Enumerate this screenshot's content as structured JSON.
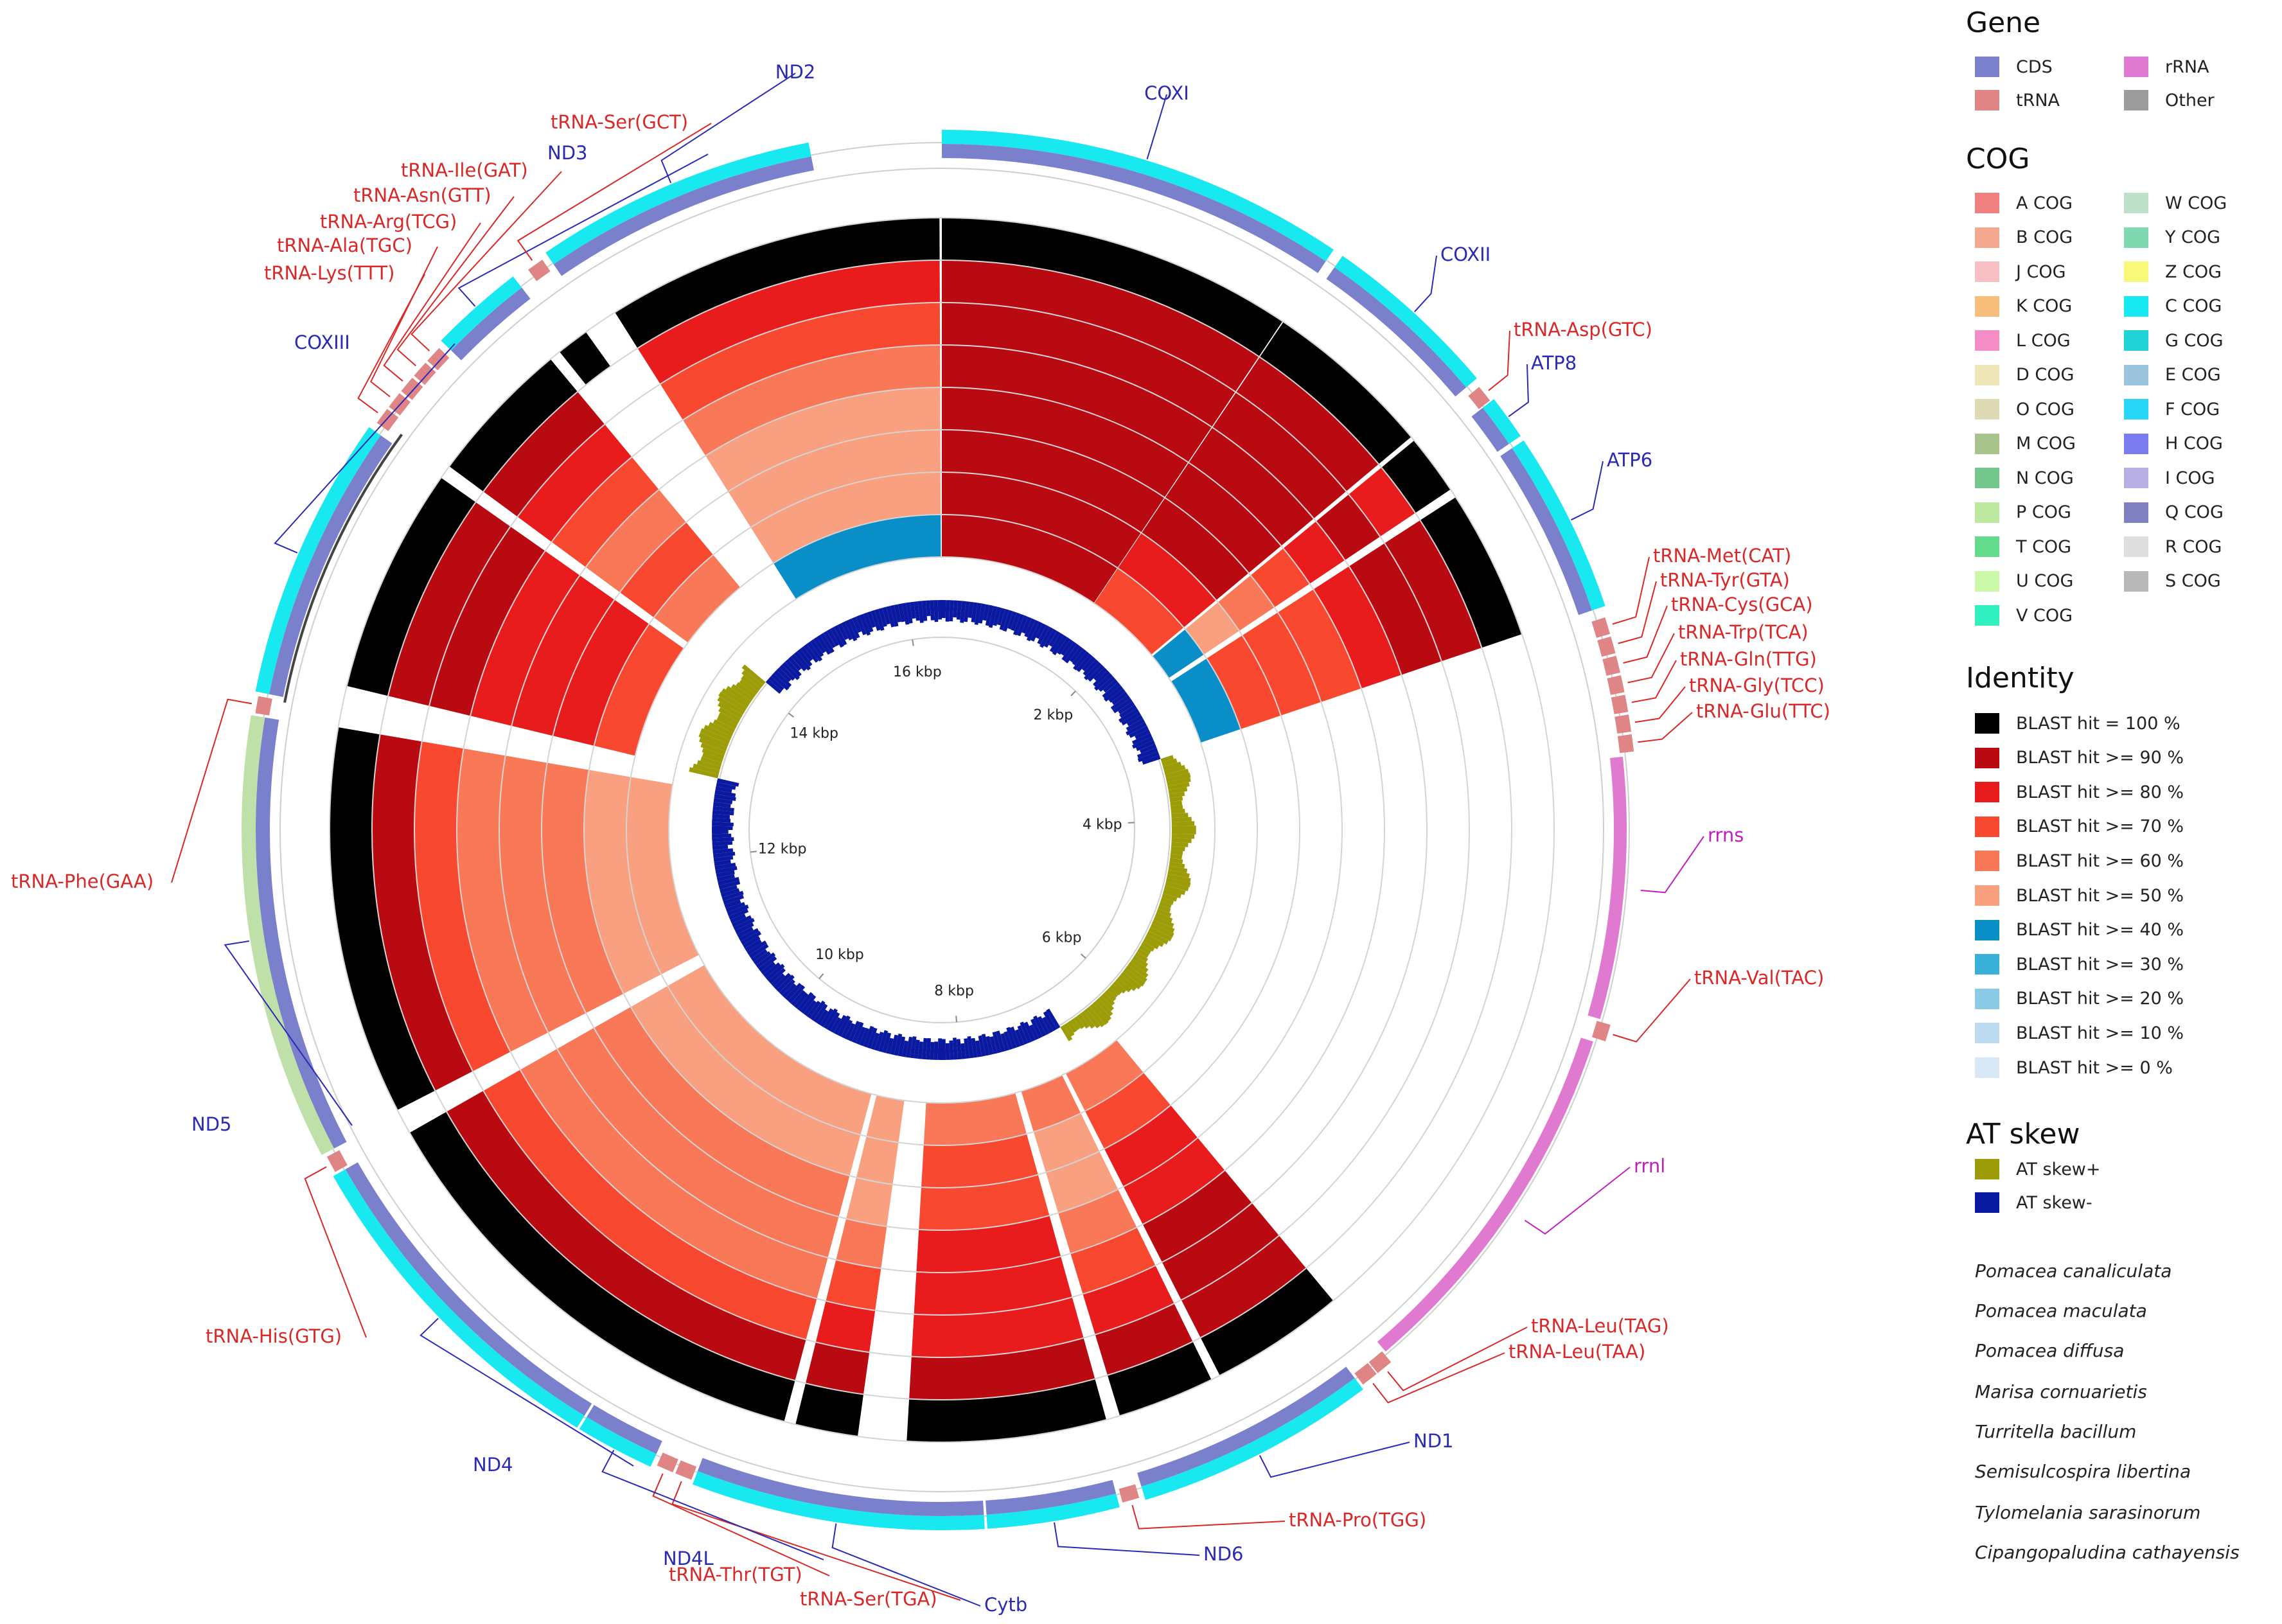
{
  "chart_data": {
    "type": "circular-genome-map",
    "genome_length_bp": 16400,
    "ticks": [
      {
        "pos": 2000,
        "label": "2 kbp"
      },
      {
        "pos": 4000,
        "label": "4 kbp"
      },
      {
        "pos": 6000,
        "label": "6 kbp"
      },
      {
        "pos": 8000,
        "label": "8 kbp"
      },
      {
        "pos": 10000,
        "label": "10 kbp"
      },
      {
        "pos": 12000,
        "label": "12 kbp"
      },
      {
        "pos": 14000,
        "label": "14 kbp"
      },
      {
        "pos": 16000,
        "label": "16 kbp"
      }
    ],
    "genes": [
      {
        "name": "COXI",
        "type": "CDS",
        "start": 0,
        "end": 1550
      },
      {
        "name": "COXII",
        "type": "CDS",
        "start": 1590,
        "end": 2270
      },
      {
        "name": "tRNA-Asp(GTC)",
        "type": "tRNA",
        "start": 2300,
        "end": 2365
      },
      {
        "name": "ATP8",
        "type": "CDS",
        "start": 2370,
        "end": 2540
      },
      {
        "name": "ATP6",
        "type": "CDS",
        "start": 2560,
        "end": 3250
      },
      {
        "name": "tRNA-Met(CAT)",
        "type": "tRNA",
        "start": 3290,
        "end": 3355
      },
      {
        "name": "tRNA-Tyr(GTA)",
        "type": "tRNA",
        "start": 3365,
        "end": 3430
      },
      {
        "name": "tRNA-Cys(GCA)",
        "type": "tRNA",
        "start": 3440,
        "end": 3505
      },
      {
        "name": "tRNA-Trp(TCA)",
        "type": "tRNA",
        "start": 3515,
        "end": 3580
      },
      {
        "name": "tRNA-Gln(TTG)",
        "type": "tRNA",
        "start": 3590,
        "end": 3655
      },
      {
        "name": "tRNA-Gly(TCC)",
        "type": "tRNA",
        "start": 3665,
        "end": 3730
      },
      {
        "name": "tRNA-Glu(TTC)",
        "type": "tRNA",
        "start": 3740,
        "end": 3805
      },
      {
        "name": "rrns",
        "type": "rRNA",
        "start": 3820,
        "end": 4830
      },
      {
        "name": "tRNA-Val(TAC)",
        "type": "tRNA",
        "start": 4840,
        "end": 4905
      },
      {
        "name": "rrnl",
        "type": "rRNA",
        "start": 4920,
        "end": 6360
      },
      {
        "name": "tRNA-Leu(TAG)",
        "type": "tRNA",
        "start": 6370,
        "end": 6435
      },
      {
        "name": "tRNA-Leu(TAA)",
        "type": "tRNA",
        "start": 6440,
        "end": 6505
      },
      {
        "name": "ND1",
        "type": "CDS",
        "start": 6515,
        "end": 7430
      },
      {
        "name": "tRNA-Pro(TGG)",
        "type": "tRNA",
        "start": 7450,
        "end": 7515
      },
      {
        "name": "ND6",
        "type": "CDS",
        "start": 7530,
        "end": 8030
      },
      {
        "name": "Cytb",
        "type": "CDS",
        "start": 8040,
        "end": 9150
      },
      {
        "name": "tRNA-Ser(TGA)",
        "type": "tRNA",
        "start": 9160,
        "end": 9225
      },
      {
        "name": "tRNA-Thr(TGT)",
        "type": "tRNA",
        "start": 9235,
        "end": 9300
      },
      {
        "name": "ND4L",
        "type": "CDS",
        "start": 9320,
        "end": 9620
      },
      {
        "name": "ND4",
        "type": "CDS",
        "start": 9630,
        "end": 10950
      },
      {
        "name": "tRNA-His(GTG)",
        "type": "tRNA",
        "start": 10960,
        "end": 11025
      },
      {
        "name": "ND5",
        "type": "CDS",
        "start": 11040,
        "end": 12730
      },
      {
        "name": "tRNA-Phe(GAA)",
        "type": "tRNA",
        "start": 12740,
        "end": 12805
      },
      {
        "name": "COXIII",
        "type": "CDS",
        "start": 12820,
        "end": 13900
      },
      {
        "name": "tRNA-Lys(TTT)",
        "type": "tRNA",
        "start": 13930,
        "end": 13995
      },
      {
        "name": "tRNA-Ala(TGC)",
        "type": "tRNA",
        "start": 14005,
        "end": 14070
      },
      {
        "name": "tRNA-Arg(TCG)",
        "type": "tRNA",
        "start": 14080,
        "end": 14145
      },
      {
        "name": "tRNA-Asn(GTT)",
        "type": "tRNA",
        "start": 14155,
        "end": 14220
      },
      {
        "name": "tRNA-Ile(GAT)",
        "type": "tRNA",
        "start": 14230,
        "end": 14295
      },
      {
        "name": "ND3",
        "type": "CDS",
        "start": 14320,
        "end": 14680
      },
      {
        "name": "tRNA-Ser(GCT)",
        "type": "tRNA",
        "start": 14740,
        "end": 14805
      },
      {
        "name": "ND2",
        "type": "CDS",
        "start": 14830,
        "end": 15900
      }
    ],
    "blast_rings_inner_to_outer": [
      "Cipangopaludina cathayensis",
      "Tylomelania sarasinorum",
      "Semisulcospira libertina",
      "Turritella bacillum",
      "Marisa cornuarietis",
      "Pomacea diffusa",
      "Pomacea maculata",
      "Pomacea canaliculata"
    ],
    "blast_hits": [
      {
        "start": 0,
        "end": 1540,
        "identity": [
          90,
          90,
          90,
          90,
          90,
          90,
          90,
          100
        ]
      },
      {
        "start": 1545,
        "end": 2280,
        "identity": [
          70,
          80,
          90,
          90,
          90,
          90,
          90,
          100
        ]
      },
      {
        "start": 2300,
        "end": 2560,
        "identity": [
          40,
          50,
          60,
          70,
          80,
          90,
          80,
          100
        ]
      },
      {
        "start": 2600,
        "end": 3250,
        "identity": [
          40,
          70,
          70,
          70,
          80,
          90,
          90,
          100
        ]
      },
      {
        "start": 6390,
        "end": 6970,
        "identity": [
          60,
          70,
          80,
          80,
          90,
          90,
          90,
          100
        ]
      },
      {
        "start": 7010,
        "end": 7430,
        "identity": [
          60,
          50,
          50,
          60,
          70,
          80,
          90,
          100
        ]
      },
      {
        "start": 7490,
        "end": 8350,
        "identity": [
          60,
          70,
          70,
          80,
          80,
          80,
          90,
          100
        ]
      },
      {
        "start": 8560,
        "end": 8830,
        "identity": [
          50,
          50,
          50,
          60,
          70,
          80,
          90,
          100
        ]
      },
      {
        "start": 8880,
        "end": 10950,
        "identity": [
          50,
          50,
          60,
          60,
          60,
          70,
          90,
          100
        ]
      },
      {
        "start": 11060,
        "end": 12740,
        "identity": [
          50,
          50,
          60,
          60,
          60,
          70,
          90,
          100
        ]
      },
      {
        "start": 12920,
        "end": 13900,
        "identity": [
          0,
          70,
          80,
          80,
          80,
          90,
          90,
          100
        ]
      },
      {
        "start": 13960,
        "end": 14590,
        "identity": [
          0,
          60,
          70,
          60,
          70,
          80,
          90,
          100
        ]
      },
      {
        "start": 14640,
        "end": 14780,
        "identity": [
          0,
          0,
          0,
          0,
          0,
          0,
          0,
          100
        ]
      },
      {
        "start": 14930,
        "end": 16390,
        "identity": [
          40,
          50,
          50,
          50,
          60,
          70,
          80,
          100
        ]
      }
    ]
  },
  "legend": {
    "gene": {
      "title": "Gene",
      "items": [
        {
          "label": "CDS",
          "color": "#7a80cc"
        },
        {
          "label": "tRNA",
          "color": "#e08585"
        },
        {
          "label": "rRNA",
          "color": "#e07ad1"
        },
        {
          "label": "Other",
          "color": "#9c9c9c"
        }
      ]
    },
    "cog": {
      "title": "COG",
      "items": [
        {
          "label": "A COG",
          "color": "#f08080"
        },
        {
          "label": "B COG",
          "color": "#f4a890"
        },
        {
          "label": "J COG",
          "color": "#f8c0c4"
        },
        {
          "label": "K COG",
          "color": "#f8bf7c"
        },
        {
          "label": "L COG",
          "color": "#f68cc6"
        },
        {
          "label": "D COG",
          "color": "#efe6b8"
        },
        {
          "label": "O COG",
          "color": "#dedab4"
        },
        {
          "label": "M COG",
          "color": "#a8c48c"
        },
        {
          "label": "N COG",
          "color": "#74c88e"
        },
        {
          "label": "P COG",
          "color": "#bce8a0"
        },
        {
          "label": "T COG",
          "color": "#62dc8a"
        },
        {
          "label": "U COG",
          "color": "#c8f8a8"
        },
        {
          "label": "V COG",
          "color": "#30f0c0"
        },
        {
          "label": "W COG",
          "color": "#bfe0c8"
        },
        {
          "label": "Y COG",
          "color": "#80d8b0"
        },
        {
          "label": "Z COG",
          "color": "#f8f87a"
        },
        {
          "label": "C COG",
          "color": "#18e8f0"
        },
        {
          "label": "G COG",
          "color": "#20d4d6"
        },
        {
          "label": "E COG",
          "color": "#9cc4dc"
        },
        {
          "label": "F COG",
          "color": "#28d6f8"
        },
        {
          "label": "H COG",
          "color": "#7a7cf0"
        },
        {
          "label": "I COG",
          "color": "#b8b0e4"
        },
        {
          "label": "Q COG",
          "color": "#7f80c0"
        },
        {
          "label": "R COG",
          "color": "#dedede"
        },
        {
          "label": "S COG",
          "color": "#b8b8b8"
        }
      ]
    },
    "identity": {
      "title": "Identity",
      "items": [
        {
          "label": "BLAST hit = 100 %",
          "color": "#000000"
        },
        {
          "label": "BLAST hit >= 90 %",
          "color": "#b80a10"
        },
        {
          "label": "BLAST hit >= 80 %",
          "color": "#e81c1c"
        },
        {
          "label": "BLAST hit >= 70 %",
          "color": "#f84830"
        },
        {
          "label": "BLAST hit >= 60 %",
          "color": "#f87858"
        },
        {
          "label": "BLAST hit >= 50 %",
          "color": "#f8a080"
        },
        {
          "label": "BLAST hit >= 40 %",
          "color": "#0a8ec8"
        },
        {
          "label": "BLAST hit >= 30 %",
          "color": "#38b0d8"
        },
        {
          "label": "BLAST hit >= 20 %",
          "color": "#8ccbe6"
        },
        {
          "label": "BLAST hit >= 10 %",
          "color": "#bcdaf0"
        },
        {
          "label": "BLAST hit >= 0 %",
          "color": "#d8e8f6"
        }
      ]
    },
    "at_skew": {
      "title": "AT skew",
      "items": [
        {
          "label": "AT skew+",
          "color": "#9c9c08"
        },
        {
          "label": "AT skew-",
          "color": "#0a1aa0"
        }
      ]
    },
    "species": [
      "Pomacea canaliculata",
      "Pomacea maculata",
      "Pomacea diffusa",
      "Marisa cornuarietis",
      "Turritella bacillum",
      "Semisulcospira libertina",
      "Tylomelania sarasinorum",
      "Cipangopaludina cathayensis"
    ]
  },
  "colors": {
    "cds_label": "#2a2ab4",
    "trna_label": "#d82828",
    "rrna_label": "#c020c0",
    "cog_ring": "#18e8f0",
    "cds_ring": "#7a80cc",
    "trna_ring": "#e08585",
    "rrna_ring": "#e07ad1",
    "nd5_cog": "#bfe0a8"
  }
}
